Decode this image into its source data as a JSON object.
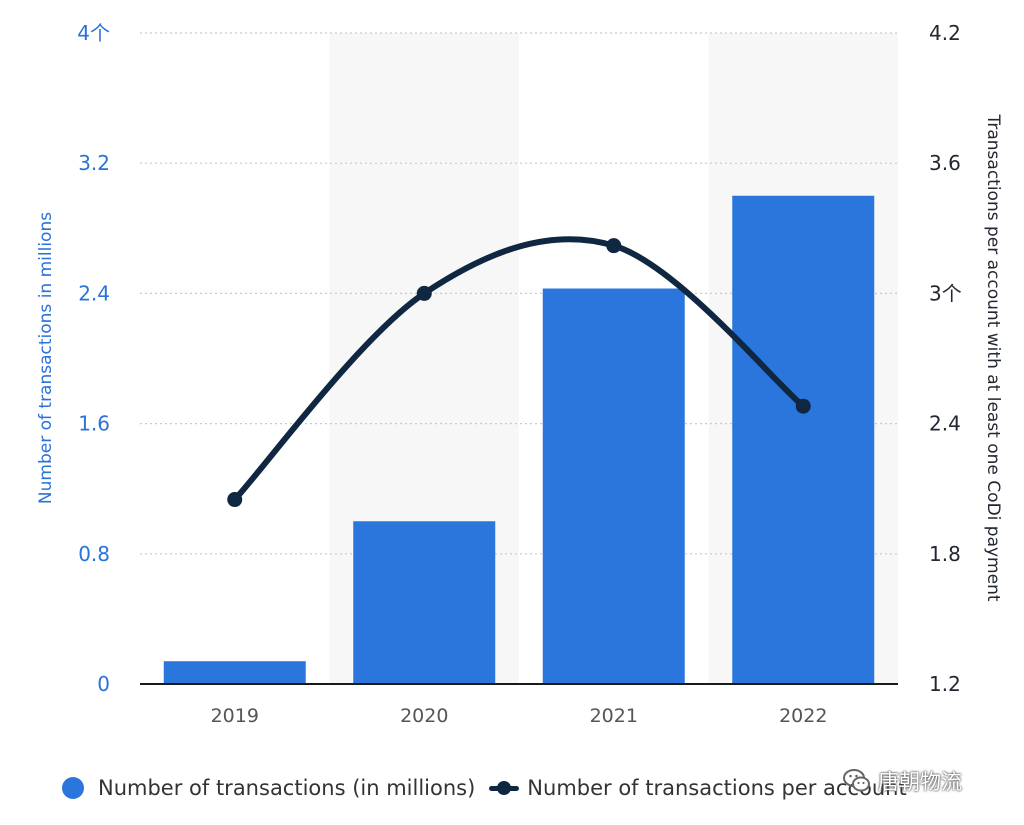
{
  "chart_data": {
    "type": "bar",
    "categories": [
      "2019",
      "2020",
      "2021",
      "2022"
    ],
    "series": [
      {
        "name": "Number of transactions (in millions)",
        "kind": "bar",
        "axis": "left",
        "color": "#2a76dd",
        "values": [
          0.14,
          1.0,
          2.43,
          3.0
        ]
      },
      {
        "name": "Number of transactions per account",
        "kind": "line",
        "axis": "right",
        "color": "#0f2740",
        "values": [
          2.05,
          3.0,
          3.22,
          2.48
        ]
      }
    ],
    "ylabel": "Number of transactions in millions",
    "y2label": "Transactions per account with at least one CoDi payment",
    "ylim": [
      0,
      4
    ],
    "y2lim": [
      1.2,
      4.2
    ],
    "yticks": [
      "0",
      "0.8",
      "1.6",
      "2.4",
      "3.2",
      "4个"
    ],
    "y2ticks": [
      "1.2",
      "1.8",
      "2.4",
      "3个",
      "3.6",
      "4.2"
    ],
    "grid": true,
    "legend_position": "bottom",
    "colors": {
      "left_axis": "#2a72d9",
      "right_axis": "#222831",
      "band": "#f7f7f7",
      "grid": "#c9c9c9",
      "baseline": "#1a1a1a"
    }
  },
  "watermark": {
    "text": "唐朝物流",
    "icon": "wechat-icon"
  }
}
